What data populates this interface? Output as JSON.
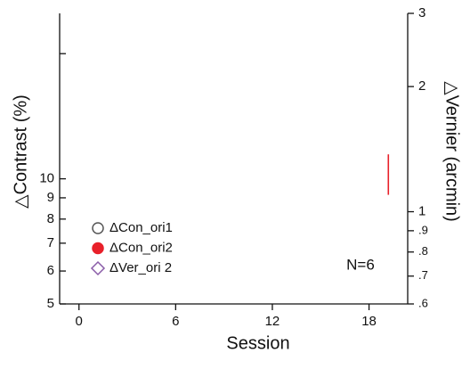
{
  "chart_data": {
    "type": "errorbar",
    "xlabel": "Session",
    "ylabel": "△Contrast (%)",
    "y2label": "△Vernier (arcmin)",
    "annotation": "N=6",
    "xlim": [
      -1.2,
      20.4
    ],
    "xticks": [
      0,
      6,
      12,
      18
    ],
    "ylim": [
      5,
      25
    ],
    "yscale": "log",
    "yticks": [
      5,
      6,
      7,
      8,
      9,
      10
    ],
    "y_unlabeled_ticks": [
      20
    ],
    "y2lim": [
      0.6,
      3
    ],
    "y2scale": "log",
    "y2ticks": [
      {
        "value": 0.6,
        "label": ".6"
      },
      {
        "value": 0.7,
        "label": ".7"
      },
      {
        "value": 0.8,
        "label": ".8"
      },
      {
        "value": 0.9,
        "label": ".9"
      },
      1,
      2,
      3
    ],
    "series": [
      {
        "name": "ΔCon_ori1",
        "color": "#555555",
        "marker": "open-circle",
        "x": [],
        "values": [],
        "errors": []
      },
      {
        "name": "ΔCon_ori2",
        "color": "#e8202a",
        "marker": "filled-circle",
        "x": [
          19.2
        ],
        "values": [
          10.3
        ],
        "errors": [
          1.15
        ]
      },
      {
        "name": "ΔVer_ori 2",
        "color": "#8a5ca8",
        "marker": "open-diamond",
        "axis": "y2",
        "x": [],
        "values": [],
        "errors": []
      }
    ]
  }
}
